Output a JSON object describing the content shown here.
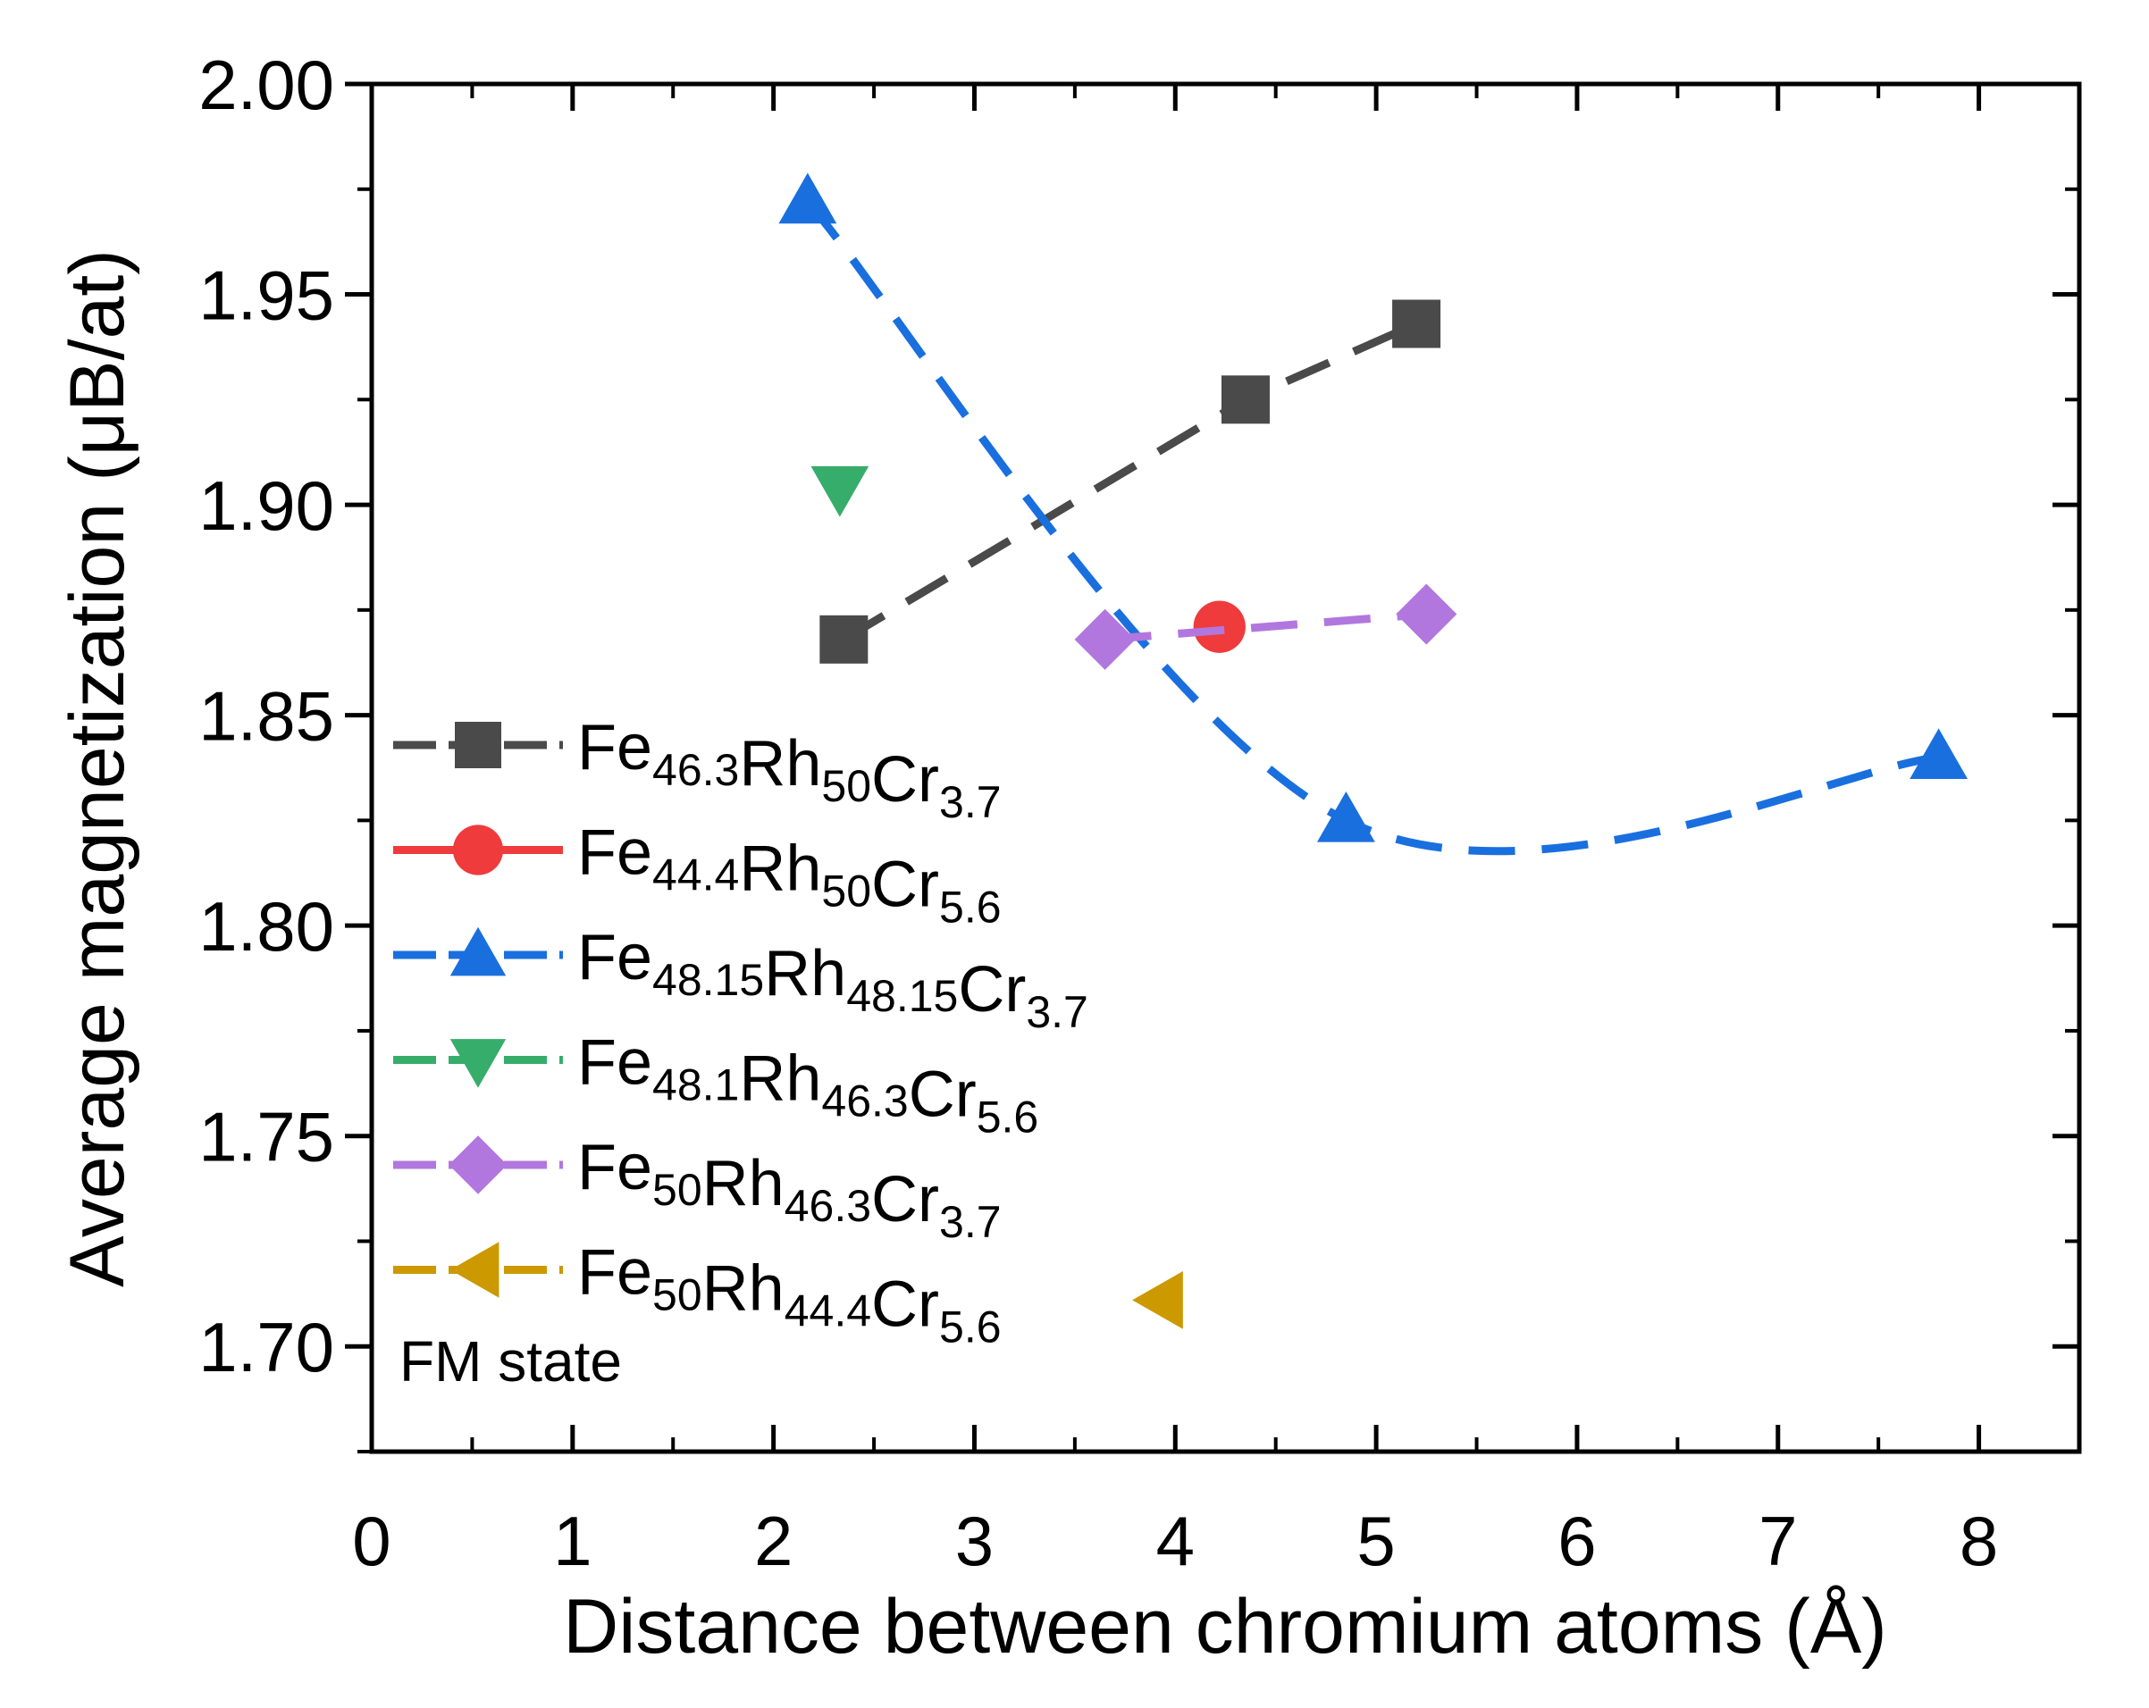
{
  "chart_data": {
    "type": "scatter",
    "title": "",
    "xlabel": "Distance between chromium atoms (Å)",
    "ylabel": "Average magnetization (μB/at)",
    "xlim": [
      0,
      8.5
    ],
    "ylim": [
      1.675,
      2.0
    ],
    "x_ticks": [
      "0",
      "1",
      "2",
      "3",
      "4",
      "5",
      "6",
      "7",
      "8"
    ],
    "y_ticks": [
      "1.70",
      "1.75",
      "1.80",
      "1.85",
      "1.90",
      "1.95",
      "2.00"
    ],
    "annotation": "FM state",
    "legend_position": "left",
    "series": [
      {
        "name": "Fe46.3Rh50Cr3.7",
        "label": [
          {
            "t": "Fe"
          },
          {
            "t": "46.3",
            "sub": true
          },
          {
            "t": "Rh"
          },
          {
            "t": "50",
            "sub": true
          },
          {
            "t": "Cr"
          },
          {
            "t": "3.7",
            "sub": true
          }
        ],
        "marker": "square",
        "color": "#4a4a4a",
        "line": "dashed",
        "curve": "linear",
        "x": [
          2.35,
          4.35,
          5.2
        ],
        "y": [
          1.868,
          1.925,
          1.943
        ]
      },
      {
        "name": "Fe44.4Rh50Cr5.6",
        "label": [
          {
            "t": "Fe"
          },
          {
            "t": "44.4",
            "sub": true
          },
          {
            "t": "Rh"
          },
          {
            "t": "50",
            "sub": true
          },
          {
            "t": "Cr"
          },
          {
            "t": "5.6",
            "sub": true
          }
        ],
        "marker": "circle",
        "color": "#ef3b3b",
        "line": "solid",
        "curve": "none",
        "x": [
          4.22
        ],
        "y": [
          1.871
        ]
      },
      {
        "name": "Fe48.15Rh48.15Cr3.7",
        "label": [
          {
            "t": "Fe"
          },
          {
            "t": "48.15",
            "sub": true
          },
          {
            "t": "Rh"
          },
          {
            "t": "48.15",
            "sub": true
          },
          {
            "t": "Cr"
          },
          {
            "t": "3.7",
            "sub": true
          }
        ],
        "marker": "triangle-up",
        "color": "#1a6fdf",
        "line": "dashed",
        "curve": "smooth",
        "x": [
          2.17,
          4.85,
          7.8
        ],
        "y": [
          1.972,
          1.825,
          1.84
        ]
      },
      {
        "name": "Fe48.1Rh46.3Cr5.6",
        "label": [
          {
            "t": "Fe"
          },
          {
            "t": "48.1",
            "sub": true
          },
          {
            "t": "Rh"
          },
          {
            "t": "46.3",
            "sub": true
          },
          {
            "t": "Cr"
          },
          {
            "t": "5.6",
            "sub": true
          }
        ],
        "marker": "triangle-down",
        "color": "#37ad6b",
        "line": "dashed",
        "curve": "none",
        "x": [
          2.33
        ],
        "y": [
          1.904
        ]
      },
      {
        "name": "Fe50Rh46.3Cr3.7",
        "label": [
          {
            "t": "Fe"
          },
          {
            "t": "50",
            "sub": true
          },
          {
            "t": "Rh"
          },
          {
            "t": "46.3",
            "sub": true
          },
          {
            "t": "Cr"
          },
          {
            "t": "3.7",
            "sub": true
          }
        ],
        "marker": "diamond",
        "color": "#b177de",
        "line": "dashed",
        "curve": "linear",
        "x": [
          3.65,
          5.25
        ],
        "y": [
          1.868,
          1.874
        ]
      },
      {
        "name": "Fe50Rh44.4Cr5.6",
        "label": [
          {
            "t": "Fe"
          },
          {
            "t": "50",
            "sub": true
          },
          {
            "t": "Rh"
          },
          {
            "t": "44.4",
            "sub": true
          },
          {
            "t": "Cr"
          },
          {
            "t": "5.6",
            "sub": true
          }
        ],
        "marker": "triangle-left",
        "color": "#cc9900",
        "line": "dashed",
        "curve": "none",
        "x": [
          3.93
        ],
        "y": [
          1.711
        ]
      }
    ]
  }
}
